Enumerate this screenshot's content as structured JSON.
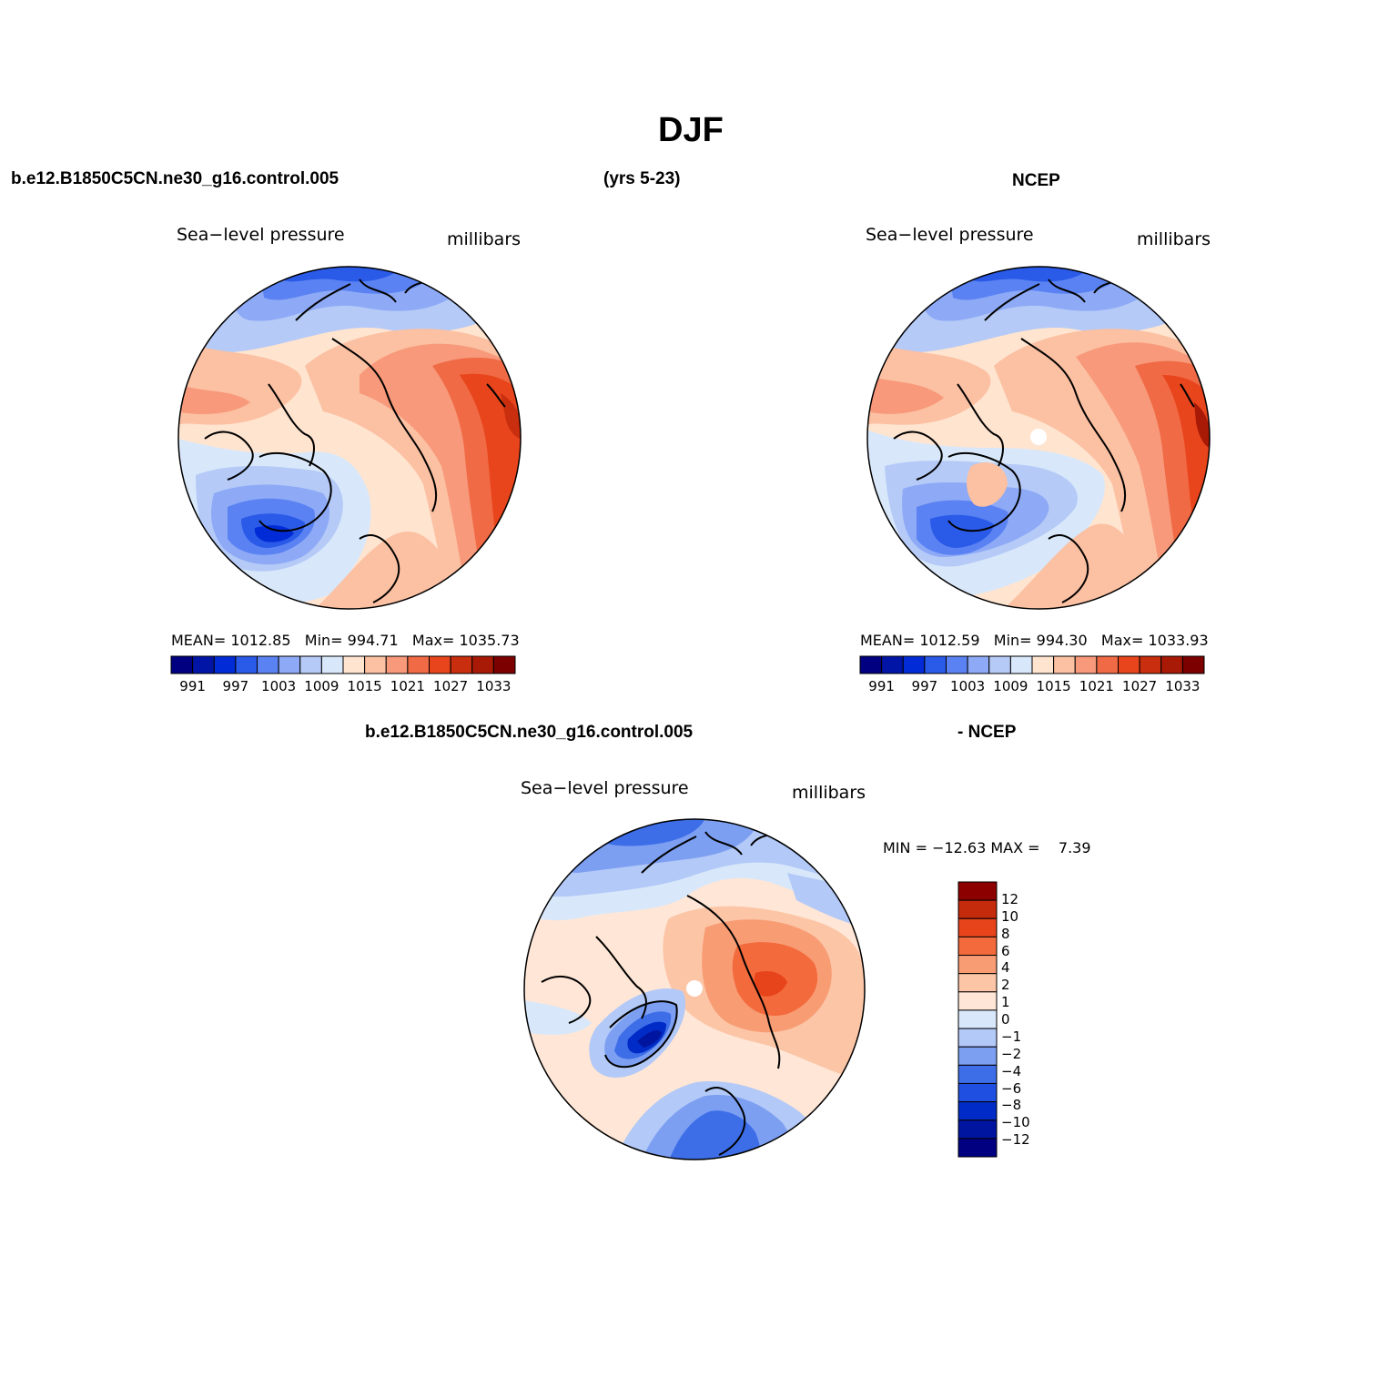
{
  "title": "DJF",
  "top_left_header": "b.e12.B1850C5CN.ne30_g16.control.005",
  "top_mid_header": "(yrs 5-23)",
  "top_right_header": "NCEP",
  "bottom_header_left": "b.e12.B1850C5CN.ne30_g16.control.005",
  "bottom_header_right": "- NCEP",
  "colors": {
    "abs_scale": [
      "#000080",
      "#0015a6",
      "#002bd6",
      "#2a5ae8",
      "#5a82f2",
      "#8eaaf6",
      "#b5caf7",
      "#d8e8fa",
      "#ffe4d0",
      "#fcc0a2",
      "#f7997a",
      "#f06a45",
      "#e8451c",
      "#c92e0e",
      "#a81a06",
      "#7d0000"
    ],
    "diff_scale": [
      "#000080",
      "#00159f",
      "#002bc6",
      "#1f4fe0",
      "#3d6ee8",
      "#7c9ff2",
      "#b3c9f7",
      "#d8e8fa",
      "#ffe6d6",
      "#fcc5a6",
      "#f89c74",
      "#f36a3c",
      "#e8441c",
      "#c42a0c",
      "#8d0000"
    ]
  },
  "panels": [
    {
      "id": "model",
      "variable": "Sea−level pressure",
      "units": "millibars",
      "mean_label": "MEAN=",
      "mean": "1012.85",
      "min_label": "Min=",
      "min": "994.71",
      "max_label": "Max=",
      "max": "1035.73",
      "colorbar_ticks": [
        "991",
        "997",
        "1003",
        "1009",
        "1015",
        "1021",
        "1027",
        "1033"
      ]
    },
    {
      "id": "ncep",
      "variable": "Sea−level pressure",
      "units": "millibars",
      "mean_label": "MEAN=",
      "mean": "1012.59",
      "min_label": "Min=",
      "min": "994.30",
      "max_label": "Max=",
      "max": "1033.93",
      "colorbar_ticks": [
        "991",
        "997",
        "1003",
        "1009",
        "1015",
        "1021",
        "1027",
        "1033"
      ]
    },
    {
      "id": "diff",
      "variable": "Sea−level pressure",
      "units": "millibars",
      "minmax_text": "MIN = −12.63 MAX =    7.39",
      "colorbar_ticks": [
        "12",
        "10",
        "8",
        "6",
        "4",
        "2",
        "1",
        "0",
        "−1",
        "−2",
        "−4",
        "−6",
        "−8",
        "−10",
        "−12"
      ]
    }
  ]
}
